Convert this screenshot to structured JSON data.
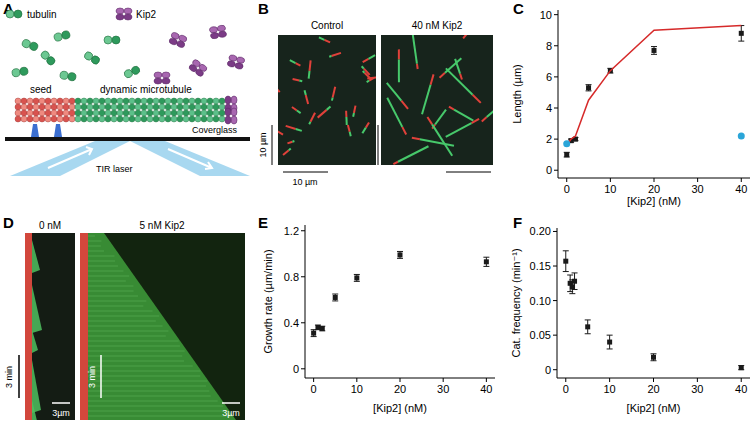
{
  "panel_a": {
    "label": "A",
    "tubulin": "tubulin",
    "kip2": "Kip2",
    "seed": "seed",
    "microtubule": "dynamic microtubule",
    "coverglass": "Coverglass",
    "laser": "TIR laser"
  },
  "panel_b": {
    "label": "B",
    "images": [
      "Control",
      "40 nM Kip2"
    ],
    "scale_bars": [
      "10 µm",
      "10 µm"
    ]
  },
  "panel_d": {
    "label": "D",
    "images": [
      "0 nM",
      "5 nM Kip2"
    ],
    "time_bars": [
      "3 min",
      "3 min"
    ],
    "length_bars": [
      "3µm",
      "3µm"
    ]
  },
  "chart_data": [
    {
      "type": "scatter",
      "title": "C",
      "x_label": "[Kip2] (nM)",
      "y_label": "Length (µm)",
      "xlim": [
        -2,
        42
      ],
      "ylim": [
        -0.5,
        10.3
      ],
      "xticks": [
        0,
        10,
        20,
        30,
        40
      ],
      "yticks": [
        0,
        2,
        4,
        6,
        8,
        10
      ],
      "series": [
        {
          "type": "scatter",
          "color": "#1a1a1a",
          "marker": "square",
          "x": [
            0,
            1,
            2,
            5,
            10,
            20,
            40
          ],
          "values": [
            1.0,
            1.9,
            2.0,
            5.3,
            6.4,
            7.7,
            8.8
          ],
          "errors": [
            0.15,
            0.1,
            0.1,
            0.2,
            0.15,
            0.25,
            0.5
          ]
        },
        {
          "type": "line",
          "color": "#d62a2a",
          "line_style": "solid",
          "x": [
            0,
            1,
            2,
            5,
            10,
            20,
            40
          ],
          "values": [
            1.6,
            2.0,
            2.2,
            4.5,
            6.4,
            9.0,
            9.3
          ]
        },
        {
          "type": "scatter",
          "color": "#2aa5d8",
          "marker": "circle",
          "x": [
            0,
            40
          ],
          "values": [
            1.7,
            2.2
          ]
        }
      ]
    },
    {
      "type": "scatter",
      "title": "E",
      "x_label": "[Kip2] (nM)",
      "y_label": "Growth rate (µm/min)",
      "xlim": [
        -2,
        42
      ],
      "ylim": [
        -0.08,
        1.25
      ],
      "xticks": [
        0,
        10,
        20,
        30,
        40
      ],
      "yticks": [
        0,
        0.4,
        0.8,
        1.2
      ],
      "series": [
        {
          "type": "scatter",
          "color": "#1a1a1a",
          "marker": "square",
          "x": [
            0,
            1,
            2,
            5,
            10,
            20,
            40
          ],
          "values": [
            0.31,
            0.36,
            0.35,
            0.62,
            0.79,
            0.99,
            0.93
          ],
          "errors": [
            0.03,
            0.02,
            0.02,
            0.03,
            0.03,
            0.03,
            0.04
          ]
        }
      ]
    },
    {
      "type": "scatter",
      "title": "F",
      "x_label": "[Kip2] (nM)",
      "y_label": "Cat. frequency (min⁻¹)",
      "xlim": [
        -2,
        42
      ],
      "ylim": [
        -0.012,
        0.205
      ],
      "xticks": [
        0,
        10,
        20,
        30,
        40
      ],
      "yticks": [
        0,
        0.05,
        {
          "value": 0.1,
          "label": "0.10"
        },
        0.15,
        {
          "value": 0.2,
          "label": "0.20"
        }
      ],
      "series": [
        {
          "type": "scatter",
          "color": "#1a1a1a",
          "marker": "square",
          "x": [
            0,
            1,
            1.5,
            2,
            5,
            10,
            20,
            40
          ],
          "values": [
            0.157,
            0.125,
            0.12,
            0.128,
            0.062,
            0.04,
            0.018,
            0.003
          ],
          "errors": [
            0.015,
            0.012,
            0.01,
            0.012,
            0.01,
            0.01,
            0.005,
            0.003
          ]
        }
      ]
    }
  ]
}
